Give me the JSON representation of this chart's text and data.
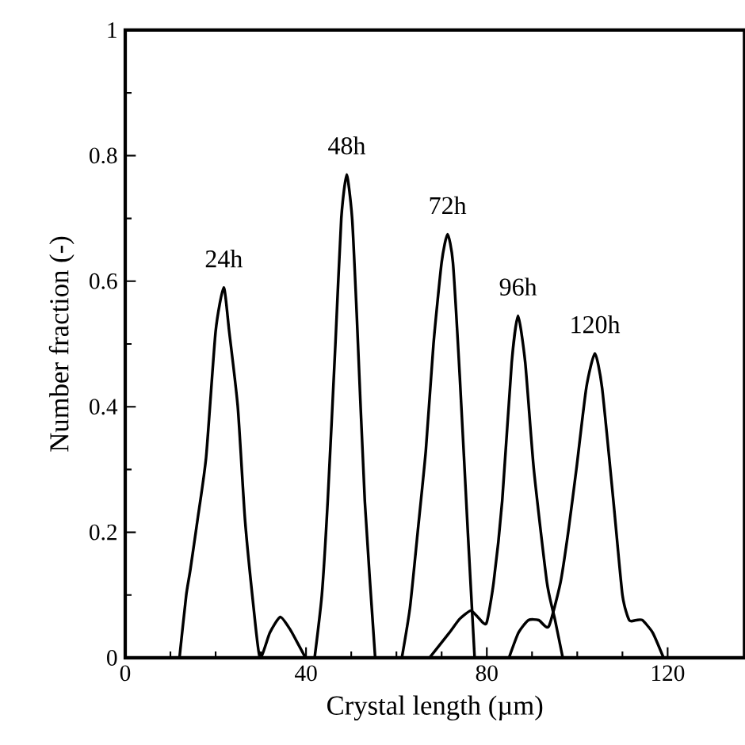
{
  "chart_data": {
    "type": "line",
    "xlabel": "Crystal length (µm)",
    "ylabel": "Number fraction (-)",
    "xlim": [
      0,
      137
    ],
    "ylim": [
      0,
      1
    ],
    "xticks": [
      0,
      40,
      80,
      120
    ],
    "yticks": [
      0,
      0.2,
      0.4,
      0.6,
      0.8,
      1
    ],
    "grid": false,
    "marker": "none",
    "line_style": "solid",
    "series": [
      {
        "color": "#000000",
        "x": [
          12.0,
          13.5,
          14.4,
          16,
          17.9,
          20,
          21.8,
          23,
          24.9,
          26.5,
          28.4,
          29.8,
          32,
          34.3,
          36.5,
          38.4,
          39.9
        ],
        "values": [
          0,
          0.1,
          0.14,
          0.22,
          0.32,
          0.52,
          0.59,
          0.52,
          0.4,
          0.22,
          0.08,
          0,
          0.04,
          0.065,
          0.045,
          0.02,
          0
        ]
      },
      {
        "color": "#000000",
        "x": [
          41.9,
          43.5,
          44.8,
          46.5,
          47.8,
          49.0,
          50.2,
          51.2,
          53.0,
          55.3
        ],
        "values": [
          0,
          0.1,
          0.25,
          0.5,
          0.7,
          0.77,
          0.7,
          0.55,
          0.25,
          0
        ]
      },
      {
        "color": "#000000",
        "x": [
          61.2,
          63,
          64.7,
          66.5,
          68.2,
          70,
          71.3,
          72.5,
          74.0,
          75.8,
          77.3
        ],
        "values": [
          0,
          0.08,
          0.2,
          0.33,
          0.5,
          0.63,
          0.675,
          0.63,
          0.45,
          0.2,
          0
        ]
      },
      {
        "color": "#000000",
        "x": [
          67.3,
          71.7,
          74,
          76.4,
          78,
          79.9,
          81.5,
          83.4,
          85.5,
          86.9,
          88.5,
          90.4,
          93.3,
          95.1,
          96.8
        ],
        "values": [
          0,
          0.04,
          0.062,
          0.075,
          0.065,
          0.055,
          0.12,
          0.25,
          0.47,
          0.545,
          0.47,
          0.3,
          0.12,
          0.06,
          0
        ]
      },
      {
        "color": "#000000",
        "x": [
          84.9,
          87,
          89.2,
          91.5,
          93.7,
          96.3,
          98,
          99.8,
          102,
          103.9,
          105.5,
          108.0,
          110,
          111.5,
          113,
          114.4,
          116.7,
          119.1
        ],
        "values": [
          0,
          0.04,
          0.06,
          0.06,
          0.05,
          0.12,
          0.2,
          0.3,
          0.43,
          0.485,
          0.43,
          0.25,
          0.1,
          0.06,
          0.06,
          0.06,
          0.04,
          0
        ]
      }
    ],
    "annotations": [
      {
        "text": "24h",
        "x": 21.8,
        "y": 0.59
      },
      {
        "text": "48h",
        "x": 49.0,
        "y": 0.77
      },
      {
        "text": "72h",
        "x": 71.3,
        "y": 0.675
      },
      {
        "text": "96h",
        "x": 86.9,
        "y": 0.545
      },
      {
        "text": "120h",
        "x": 103.9,
        "y": 0.485
      }
    ]
  }
}
